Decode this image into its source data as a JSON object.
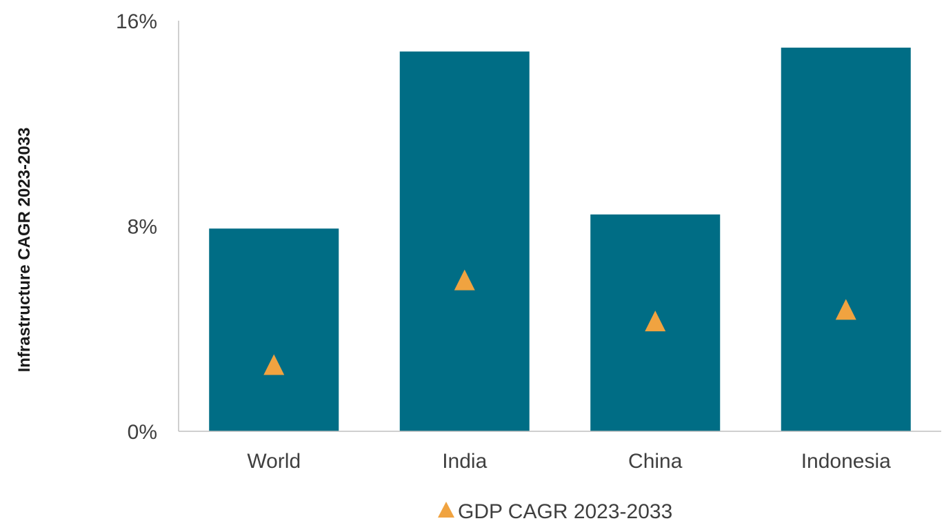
{
  "chart_data": {
    "type": "bar",
    "categories": [
      "World",
      "India",
      "China",
      "Indonesia"
    ],
    "series": [
      {
        "type": "bar",
        "values": [
          7.9,
          14.8,
          8.45,
          14.95
        ]
      },
      {
        "name": "GDP CAGR 2023-2033",
        "type": "scatter",
        "marker": "triangle",
        "values": [
          2.6,
          5.9,
          4.3,
          4.75
        ]
      }
    ],
    "ylabel": "Infrastructure CAGR 2023-2033",
    "yticks": [
      "0%",
      "8%",
      "16%"
    ],
    "ylim": [
      0,
      16
    ],
    "grid": false,
    "legend": "bottom-center",
    "colors": {
      "bar": "#006d85",
      "marker": "#f0a340",
      "axis": "#bfbfbf"
    }
  }
}
